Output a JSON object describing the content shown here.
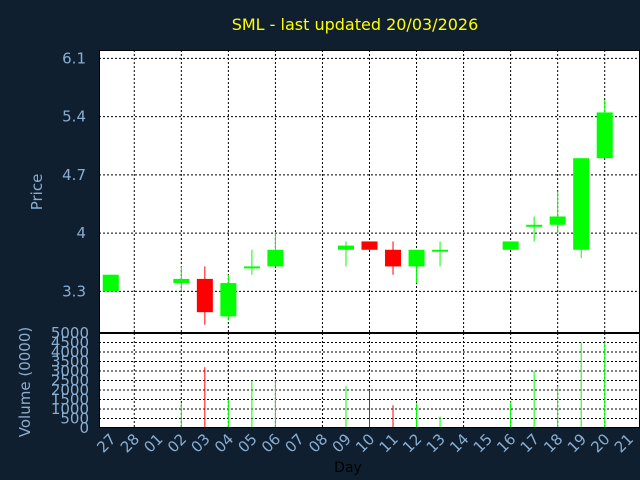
{
  "chart_data": [
    {
      "type": "candlestick",
      "title": "SML - last updated 20/03/2026",
      "ylabel": "Price",
      "ylim": [
        2.8,
        6.2
      ],
      "yticks": [
        "6.1",
        "5.4",
        "4.7",
        "4",
        "3.3"
      ],
      "ytick_values": [
        6.1,
        5.4,
        4.7,
        4.0,
        3.3
      ],
      "grid": true,
      "categories": [
        "27",
        "28",
        "01",
        "02",
        "03",
        "04",
        "05",
        "06",
        "07",
        "08",
        "09",
        "10",
        "11",
        "12",
        "13",
        "14",
        "15",
        "16",
        "17",
        "18",
        "19",
        "20",
        "21"
      ],
      "candles": [
        {
          "day": "27",
          "open": 3.3,
          "high": 3.5,
          "low": 3.3,
          "close": 3.5
        },
        {
          "day": "02",
          "open": 3.4,
          "high": 3.6,
          "low": 3.3,
          "close": 3.45
        },
        {
          "day": "03",
          "open": 3.45,
          "high": 3.6,
          "low": 2.9,
          "close": 3.05
        },
        {
          "day": "04",
          "open": 3.0,
          "high": 3.5,
          "low": 2.95,
          "close": 3.4
        },
        {
          "day": "05",
          "open": 3.6,
          "high": 3.8,
          "low": 3.5,
          "close": 3.6
        },
        {
          "day": "06",
          "open": 3.6,
          "high": 4.0,
          "low": 3.6,
          "close": 3.8
        },
        {
          "day": "09",
          "open": 3.8,
          "high": 3.9,
          "low": 3.6,
          "close": 3.85
        },
        {
          "day": "10",
          "open": 3.9,
          "high": 3.9,
          "low": 3.8,
          "close": 3.8
        },
        {
          "day": "11",
          "open": 3.8,
          "high": 3.9,
          "low": 3.5,
          "close": 3.6
        },
        {
          "day": "12",
          "open": 3.6,
          "high": 3.8,
          "low": 3.4,
          "close": 3.8
        },
        {
          "day": "13",
          "open": 3.8,
          "high": 3.9,
          "low": 3.6,
          "close": 3.8
        },
        {
          "day": "16",
          "open": 3.8,
          "high": 3.9,
          "low": 3.8,
          "close": 3.9
        },
        {
          "day": "17",
          "open": 4.1,
          "high": 4.2,
          "low": 3.9,
          "close": 4.1
        },
        {
          "day": "18",
          "open": 4.1,
          "high": 4.5,
          "low": 4.0,
          "close": 4.2
        },
        {
          "day": "19",
          "open": 3.8,
          "high": 4.9,
          "low": 3.7,
          "close": 4.9
        },
        {
          "day": "20",
          "open": 4.9,
          "high": 5.6,
          "low": 4.9,
          "close": 5.45
        }
      ]
    },
    {
      "type": "bar",
      "ylabel": "Volume (0000)",
      "xlabel": "Day",
      "ylim": [
        0,
        5000
      ],
      "yticks": [
        "5000",
        "4500",
        "4000",
        "3500",
        "3000",
        "2500",
        "2000",
        "1500",
        "1000",
        "500",
        "0"
      ],
      "ytick_values": [
        5000,
        4500,
        4000,
        3500,
        3000,
        2500,
        2000,
        1500,
        1000,
        500,
        0
      ],
      "volumes": [
        {
          "day": "02",
          "value": 1300,
          "color": "#00ff00"
        },
        {
          "day": "03",
          "value": 3200,
          "color": "#ff0000"
        },
        {
          "day": "04",
          "value": 1500,
          "color": "#00ff00"
        },
        {
          "day": "05",
          "value": 2500,
          "color": "#00ff00"
        },
        {
          "day": "06",
          "value": 2500,
          "color": "#00ff00"
        },
        {
          "day": "09",
          "value": 2200,
          "color": "#00ff00"
        },
        {
          "day": "10",
          "value": 2000,
          "color": "#ff0000"
        },
        {
          "day": "11",
          "value": 1200,
          "color": "#ff0000"
        },
        {
          "day": "12",
          "value": 1300,
          "color": "#00ff00"
        },
        {
          "day": "13",
          "value": 600,
          "color": "#00ff00"
        },
        {
          "day": "16",
          "value": 1400,
          "color": "#00ff00"
        },
        {
          "day": "17",
          "value": 3000,
          "color": "#00ff00"
        },
        {
          "day": "18",
          "value": 2200,
          "color": "#00ff00"
        },
        {
          "day": "19",
          "value": 4500,
          "color": "#00ff00"
        },
        {
          "day": "20",
          "value": 4500,
          "color": "#00ff00"
        }
      ]
    }
  ],
  "colors": {
    "background": "#0f1f30",
    "plot": "#ffffff",
    "up": "#00ff00",
    "down": "#ff0000",
    "grid": "#000000",
    "title": "#ffff00",
    "labels": "#8aaed0"
  }
}
